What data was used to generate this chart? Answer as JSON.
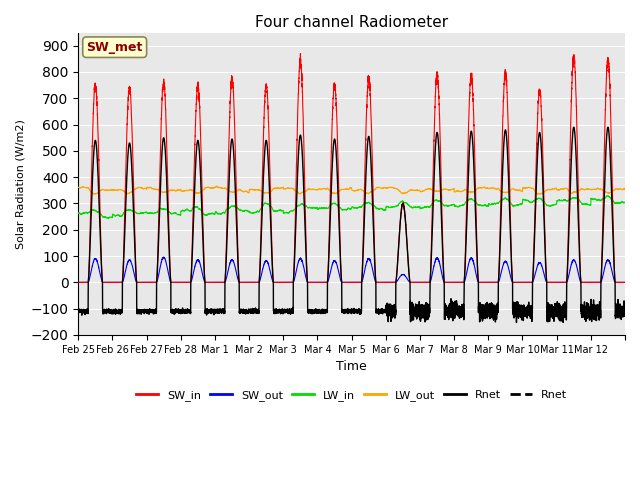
{
  "title": "Four channel Radiometer",
  "ylabel": "Solar Radiation (W/m2)",
  "xlabel": "Time",
  "ylim": [
    -200,
    950
  ],
  "yticks": [
    -200,
    -100,
    0,
    100,
    200,
    300,
    400,
    500,
    600,
    700,
    800,
    900
  ],
  "bg_color": "#e8e8e8",
  "plot_bg_color": "#e8e8e8",
  "annotation_text": "SW_met",
  "annotation_color": "#8b0000",
  "annotation_bg": "#ffffd0",
  "n_days": 16,
  "day_labels": [
    "Feb 25",
    "Feb 26",
    "Feb 27",
    "Feb 28",
    "Mar 1",
    "Mar 2",
    "Mar 3",
    "Mar 4",
    "Mar 5",
    "Mar 6",
    "Mar 7",
    "Mar 8",
    "Mar 9",
    "Mar 10",
    "Mar 11",
    "Mar 12"
  ],
  "legend": [
    {
      "label": "SW_in",
      "color": "#ff0000"
    },
    {
      "label": "SW_out",
      "color": "#0000ff"
    },
    {
      "label": "LW_in",
      "color": "#00dd00"
    },
    {
      "label": "LW_out",
      "color": "#ffa500"
    },
    {
      "label": "Rnet",
      "color": "#000000"
    },
    {
      "label": "Rnet",
      "color": "#000000"
    }
  ],
  "sw_in_peaks": [
    750,
    740,
    760,
    748,
    775,
    748,
    840,
    750,
    775,
    300,
    790,
    785,
    800,
    730,
    860,
    850
  ],
  "sw_out_peaks": [
    90,
    85,
    95,
    85,
    85,
    82,
    90,
    82,
    90,
    30,
    92,
    92,
    80,
    75,
    85,
    85
  ],
  "lw_in_base": 255,
  "lw_out_base": 355,
  "rnet_peaks": [
    540,
    530,
    550,
    540,
    545,
    540,
    560,
    545,
    555,
    300,
    570,
    575,
    580,
    570,
    590,
    590
  ],
  "rnet_night": -110
}
